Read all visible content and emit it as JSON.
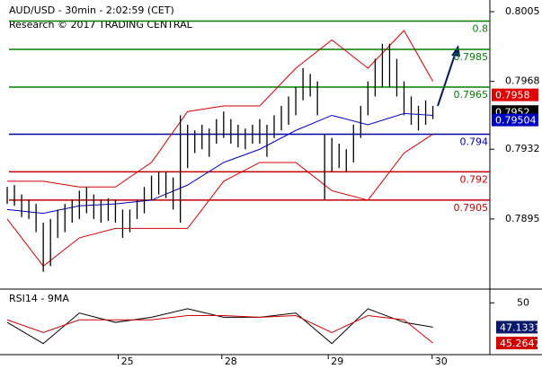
{
  "chart_data": [
    {
      "type": "ohlc",
      "title": "AUD/USD - 30min - 2:02:59 (CET)",
      "subtitle": "Research © 2017 TRADING CENTRAL",
      "x": [
        0,
        1,
        2,
        3,
        4,
        5,
        6,
        7,
        8,
        9,
        10,
        11,
        12,
        13,
        14,
        15,
        16,
        17,
        18,
        19,
        20,
        21,
        22,
        23,
        24,
        25,
        26,
        27,
        28,
        29,
        30,
        31,
        32,
        33,
        34,
        35,
        36,
        37,
        38,
        39,
        40,
        41,
        42,
        43,
        44,
        45,
        46,
        47,
        48,
        49,
        50,
        51,
        52,
        53,
        54,
        55,
        56,
        57,
        58,
        59
      ],
      "highs": [
        0.7912,
        0.7913,
        0.7908,
        0.7905,
        0.7903,
        0.7893,
        0.7895,
        0.79,
        0.7903,
        0.7905,
        0.791,
        0.7912,
        0.7908,
        0.7905,
        0.7906,
        0.7905,
        0.79,
        0.79,
        0.7905,
        0.7912,
        0.7918,
        0.792,
        0.792,
        0.7917,
        0.795,
        0.7945,
        0.7942,
        0.7945,
        0.7943,
        0.7948,
        0.7952,
        0.7948,
        0.7945,
        0.7943,
        0.7945,
        0.7948,
        0.7945,
        0.795,
        0.7955,
        0.796,
        0.7965,
        0.7975,
        0.7972,
        0.7968,
        0.794,
        0.7938,
        0.7935,
        0.7932,
        0.7945,
        0.7955,
        0.7968,
        0.798,
        0.7988,
        0.7988,
        0.798,
        0.7968,
        0.796,
        0.7955,
        0.7958,
        0.7955
      ],
      "lows": [
        0.7903,
        0.7902,
        0.7896,
        0.7895,
        0.7888,
        0.7867,
        0.787,
        0.7885,
        0.7888,
        0.7893,
        0.7895,
        0.7898,
        0.7895,
        0.7893,
        0.7894,
        0.7893,
        0.7885,
        0.7888,
        0.7895,
        0.7898,
        0.7905,
        0.7908,
        0.7906,
        0.79,
        0.7893,
        0.7922,
        0.793,
        0.7932,
        0.7928,
        0.7935,
        0.7938,
        0.7935,
        0.7933,
        0.7932,
        0.7935,
        0.7935,
        0.7928,
        0.7938,
        0.7942,
        0.7945,
        0.795,
        0.7958,
        0.796,
        0.795,
        0.7905,
        0.792,
        0.7922,
        0.792,
        0.7925,
        0.7938,
        0.795,
        0.796,
        0.7965,
        0.7965,
        0.796,
        0.795,
        0.7945,
        0.7942,
        0.7945,
        0.7948
      ],
      "overlay_x": [
        0,
        5,
        10,
        15,
        20,
        25,
        30,
        35,
        40,
        45,
        50,
        55,
        59
      ],
      "overlays": [
        {
          "color": "#0000c0",
          "values": [
            0.79,
            0.7898,
            0.7902,
            0.7903,
            0.7905,
            0.7913,
            0.7925,
            0.7932,
            0.7942,
            0.795,
            0.7945,
            0.7951,
            0.795
          ]
        },
        {
          "color": "#d00000",
          "values": [
            0.7915,
            0.7915,
            0.7912,
            0.7912,
            0.7925,
            0.7952,
            0.7955,
            0.7955,
            0.7975,
            0.799,
            0.7975,
            0.7995,
            0.7968
          ]
        },
        {
          "color": "#d00000",
          "values": [
            0.7895,
            0.787,
            0.7885,
            0.789,
            0.789,
            0.789,
            0.7915,
            0.7925,
            0.7925,
            0.791,
            0.7905,
            0.793,
            0.794
          ]
        }
      ],
      "levels": [
        {
          "value": 0.8,
          "color": "#008000"
        },
        {
          "value": 0.7985,
          "color": "#008000"
        },
        {
          "value": 0.7965,
          "color": "#008000"
        },
        {
          "value": 0.794,
          "color": "#0000a0"
        },
        {
          "value": 0.792,
          "color": "#c00000"
        },
        {
          "value": 0.7905,
          "color": "#c00000"
        }
      ],
      "markers": [
        {
          "value": 0.7958,
          "color": "#e00000"
        },
        {
          "value": 0.7952,
          "color": "#000000"
        },
        {
          "value": 0.79504,
          "color": "#0000c0"
        }
      ],
      "xlim": [
        -1,
        66.9
      ],
      "ylim": [
        0.80112,
        0.78578
      ],
      "yticks": [
        0.8005,
        0.7968,
        0.7932,
        0.7895
      ]
    },
    {
      "type": "line",
      "title": "RSI14 - 9MA",
      "x": [
        0,
        5,
        10,
        15,
        20,
        25,
        30,
        35,
        40,
        45,
        50,
        55,
        59
      ],
      "series": [
        {
          "color": "#000000",
          "values": [
            47.7,
            45.2,
            48.8,
            47.7,
            48.3,
            49.3,
            48.3,
            48.3,
            48.8,
            45.2,
            49.3,
            47.7,
            47.1331
          ]
        },
        {
          "color": "#d00000",
          "values": [
            48.0,
            46.5,
            48.0,
            48.0,
            48.0,
            48.5,
            48.5,
            48.3,
            48.5,
            46.5,
            48.5,
            48.0,
            45.2647
          ]
        }
      ],
      "xlim": [
        -1,
        66.9
      ],
      "ylim": [
        43.9,
        51.3
      ],
      "yticks": [
        50
      ],
      "xticks": [
        {
          "value": 15.4,
          "label": "25"
        },
        {
          "value": 29.75,
          "label": "28"
        },
        {
          "value": 44.5,
          "label": "29"
        },
        {
          "value": 58.9,
          "label": "30"
        }
      ]
    }
  ]
}
